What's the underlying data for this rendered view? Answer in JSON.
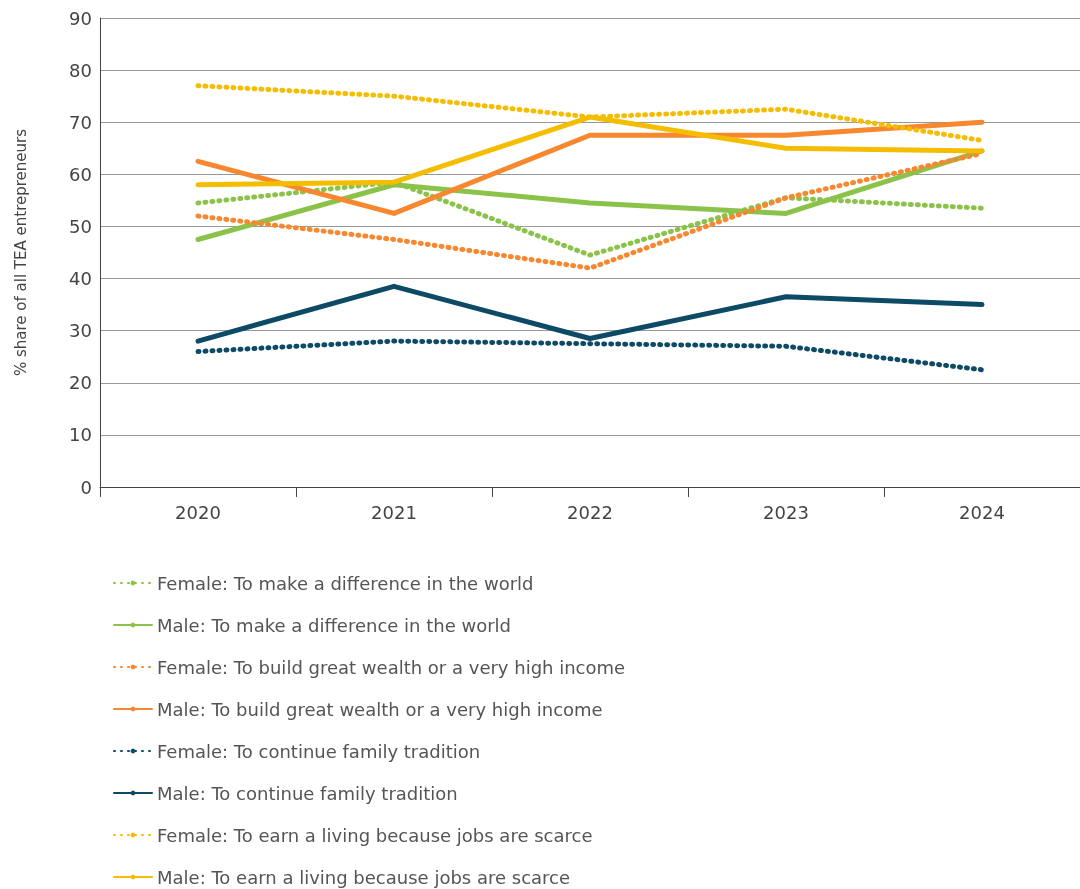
{
  "chart_data": {
    "type": "line",
    "ylabel": "% share of all TEA entrepreneurs",
    "categories": [
      "2020",
      "2021",
      "2022",
      "2023",
      "2024"
    ],
    "ylim": [
      0,
      90
    ],
    "yticks": [
      0,
      10,
      20,
      30,
      40,
      50,
      60,
      70,
      80,
      90
    ],
    "grid": "y",
    "legend": "bottom",
    "marker": "none",
    "series": [
      {
        "name": "Female: To make a difference in the world",
        "color": "#8bc34a",
        "line_style": "dotted",
        "values": [
          54.5,
          58.5,
          44.5,
          55.5,
          53.5
        ]
      },
      {
        "name": "Male: To make a difference in the world",
        "color": "#8bc34a",
        "line_style": "solid",
        "values": [
          47.5,
          58,
          54.5,
          52.5,
          64.5
        ]
      },
      {
        "name": "Female: To build great wealth or a very high income",
        "color": "#f7882f",
        "line_style": "dotted",
        "values": [
          52,
          47.5,
          42,
          55.5,
          64
        ]
      },
      {
        "name": "Male: To build great wealth or a very high income",
        "color": "#f7882f",
        "line_style": "solid",
        "values": [
          62.5,
          52.5,
          67.5,
          67.5,
          70
        ]
      },
      {
        "name": "Female: To continue family tradition",
        "color": "#0d4a66",
        "line_style": "dotted",
        "values": [
          26,
          28,
          27.5,
          27,
          22.5
        ]
      },
      {
        "name": "Male: To continue family tradition",
        "color": "#0d4a66",
        "line_style": "solid",
        "values": [
          28,
          38.5,
          28.5,
          36.5,
          35
        ]
      },
      {
        "name": "Female: To earn a living because jobs are scarce",
        "color": "#f5bd00",
        "line_style": "dotted",
        "values": [
          77,
          75,
          71,
          72.5,
          66.5
        ]
      },
      {
        "name": "Male: To earn a living because jobs are scarce",
        "color": "#f5bd00",
        "line_style": "solid",
        "values": [
          58,
          58.5,
          71,
          65,
          64.5
        ]
      }
    ]
  }
}
